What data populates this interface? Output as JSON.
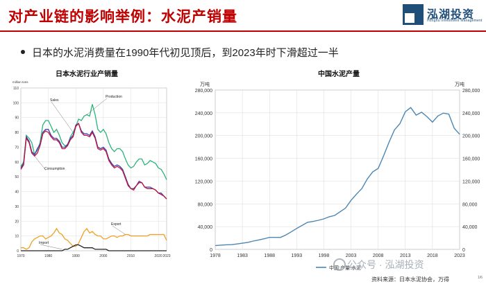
{
  "header": {
    "title": "对产业链的影响举例：水泥产销量",
    "logo_cn": "泓湖投资",
    "logo_en": "Honghu Investment Management"
  },
  "bullet": {
    "text": "日本的水泥消费量在1990年代初见顶后，到2023年时下滑超过一半"
  },
  "footer": {
    "source": "资料来源：日本水泥协会，万得",
    "watermark": "公众号 · 泓湖投资",
    "page": "1/6"
  },
  "colors": {
    "title_red": "#c00000",
    "brand_blue": "#1f4e79",
    "production": "#2bb37a",
    "sales": "#3b3fb0",
    "consumption": "#c0143c",
    "export": "#f0a020",
    "import": "#222222",
    "china": "#4a86b4"
  },
  "chart_data": [
    {
      "type": "line",
      "title": "日本水泥行业产销量",
      "ylabel": "million tons",
      "x": [
        1970,
        1971,
        1972,
        1973,
        1974,
        1975,
        1976,
        1977,
        1978,
        1979,
        1980,
        1981,
        1982,
        1983,
        1984,
        1985,
        1986,
        1987,
        1988,
        1989,
        1990,
        1991,
        1992,
        1993,
        1994,
        1995,
        1996,
        1997,
        1998,
        1999,
        2000,
        2001,
        2002,
        2003,
        2004,
        2005,
        2006,
        2007,
        2008,
        2009,
        2010,
        2011,
        2012,
        2013,
        2014,
        2015,
        2016,
        2017,
        2018,
        2019,
        2020,
        2021,
        2022,
        2023
      ],
      "xticks": [
        "1970",
        "1980",
        "1990",
        "2000",
        "2010",
        "2020",
        "2023"
      ],
      "xtick_values": [
        1970,
        1980,
        1990,
        2000,
        2010,
        2020,
        2023
      ],
      "ylim": [
        0,
        110
      ],
      "yticks": [
        "0",
        "10",
        "20",
        "30",
        "40",
        "50",
        "60",
        "70",
        "80",
        "90",
        "100",
        "110"
      ],
      "ytick_values": [
        0,
        10,
        20,
        30,
        40,
        50,
        60,
        70,
        80,
        90,
        100,
        110
      ],
      "grid": true,
      "series": [
        {
          "name": "Production",
          "color_key": "production",
          "values": [
            57,
            60,
            78,
            76,
            73,
            65,
            68,
            73,
            85,
            88,
            88,
            84,
            80,
            82,
            78,
            73,
            71,
            71,
            77,
            80,
            84,
            89,
            88,
            91,
            92,
            91,
            99,
            92,
            82,
            80,
            82,
            79,
            73,
            69,
            67,
            69,
            69,
            67,
            62,
            58,
            56,
            57,
            60,
            62,
            62,
            58,
            59,
            61,
            60,
            59,
            56,
            55,
            52,
            48
          ]
        },
        {
          "name": "Sales",
          "color_key": "sales",
          "values": [
            56,
            59,
            77,
            74,
            67,
            65,
            69,
            72,
            80,
            82,
            82,
            78,
            76,
            76,
            74,
            70,
            70,
            72,
            76,
            78,
            85,
            86,
            81,
            79,
            79,
            78,
            81,
            77,
            70,
            69,
            70,
            68,
            62,
            59,
            57,
            58,
            57,
            55,
            50,
            45,
            42,
            42,
            44,
            47,
            46,
            43,
            43,
            43,
            42,
            41,
            39,
            39,
            37,
            35
          ]
        },
        {
          "name": "Consumption",
          "color_key": "consumption",
          "values": [
            55,
            58,
            76,
            73,
            66,
            64,
            66,
            71,
            79,
            81,
            80,
            77,
            75,
            75,
            73,
            69,
            69,
            71,
            75,
            77,
            84,
            86,
            80,
            78,
            78,
            77,
            80,
            76,
            69,
            68,
            69,
            67,
            61,
            58,
            56,
            57,
            56,
            54,
            49,
            44,
            42,
            41,
            44,
            46,
            46,
            43,
            42,
            42,
            42,
            41,
            39,
            38,
            37,
            35
          ]
        },
        {
          "name": "Export",
          "color_key": "export",
          "values": [
            2,
            2,
            1,
            2,
            6,
            8,
            9,
            10,
            10,
            8,
            9,
            10,
            12,
            15,
            12,
            11,
            8,
            7,
            5,
            3,
            3,
            5,
            9,
            13,
            15,
            12,
            13,
            11,
            10,
            10,
            8,
            8,
            9,
            10,
            10,
            9,
            10,
            10,
            11,
            11,
            10,
            10,
            10,
            10,
            10,
            10,
            10,
            11,
            11,
            11,
            11,
            11,
            11,
            7
          ]
        },
        {
          "name": "Import",
          "color_key": "import",
          "values": [
            0,
            0,
            0,
            0,
            0,
            0,
            0,
            0,
            0,
            0,
            0,
            0,
            0,
            0,
            0,
            0,
            1,
            1,
            2,
            3,
            4,
            4,
            3,
            2,
            2,
            2,
            2,
            1,
            1,
            1,
            1,
            1,
            0,
            0,
            0,
            0,
            0,
            0,
            0,
            0,
            0,
            0,
            0,
            0,
            0,
            0,
            0,
            0,
            0,
            0,
            0,
            0,
            0,
            0
          ]
        }
      ],
      "annotations": [
        "Sales",
        "Production",
        "Consumption",
        "Export",
        "Import"
      ]
    },
    {
      "type": "line",
      "title": "中国水泥产量",
      "ylabel_left": "万吨",
      "ylabel_right": "万吨",
      "x": [
        1978,
        1979,
        1980,
        1981,
        1982,
        1983,
        1984,
        1985,
        1986,
        1987,
        1988,
        1989,
        1990,
        1991,
        1992,
        1993,
        1994,
        1995,
        1996,
        1997,
        1998,
        1999,
        2000,
        2001,
        2002,
        2003,
        2004,
        2005,
        2006,
        2007,
        2008,
        2009,
        2010,
        2011,
        2012,
        2013,
        2014,
        2015,
        2016,
        2017,
        2018,
        2019,
        2020,
        2021,
        2022,
        2023
      ],
      "xticks": [
        "1978",
        "1983",
        "1988",
        "1993",
        "1998",
        "2003",
        "2008",
        "2013",
        "2018",
        "2023"
      ],
      "xtick_values": [
        1978,
        1983,
        1988,
        1993,
        1998,
        2003,
        2008,
        2013,
        2018,
        2023
      ],
      "ylim": [
        0,
        280000
      ],
      "yticks": [
        "0",
        "40,000",
        "80,000",
        "120,000",
        "160,000",
        "200,000",
        "240,000",
        "280,000"
      ],
      "ytick_values": [
        0,
        40000,
        80000,
        120000,
        160000,
        200000,
        240000,
        280000
      ],
      "grid": true,
      "series": [
        {
          "name": "中国:产量:水泥",
          "color_key": "china",
          "values": [
            6524,
            7390,
            7986,
            8290,
            9520,
            10825,
            12302,
            14595,
            16606,
            18625,
            21014,
            21029,
            20971,
            25261,
            30822,
            36788,
            42118,
            47561,
            49119,
            51174,
            53600,
            57300,
            59700,
            66104,
            72500,
            86208,
            97000,
            106885,
            123676,
            136117,
            142356,
            164398,
            188191,
            209926,
            220984,
            241924,
            249207,
            235919,
            241031,
            233084,
            223610,
            234431,
            239471,
            237808,
            212927,
            202300
          ]
        }
      ],
      "legend": "bottom-center"
    }
  ]
}
